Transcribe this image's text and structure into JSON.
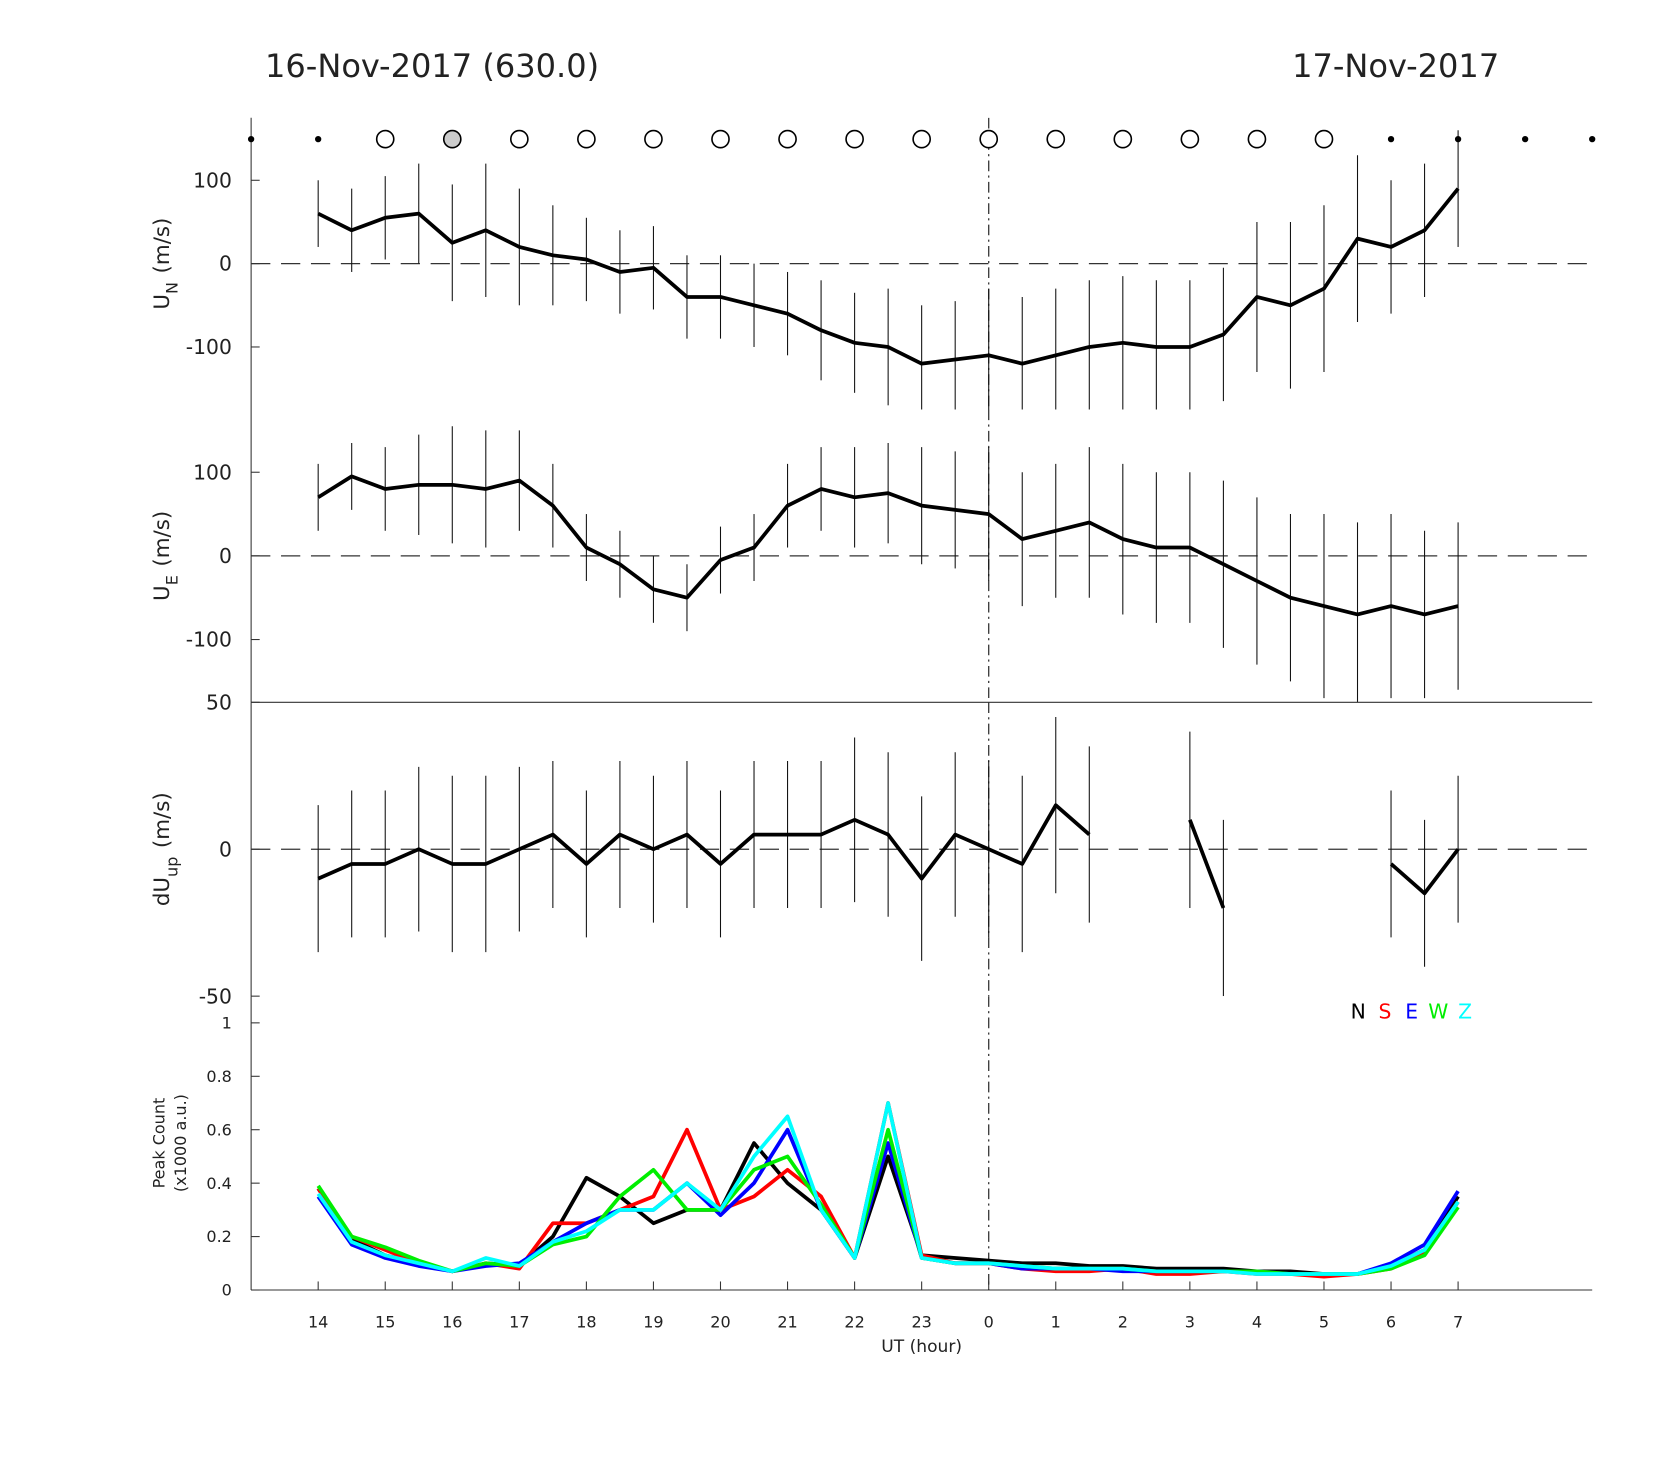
{
  "chart_data": [
    {
      "type": "line",
      "title": "16-Nov-2017 (630.0)",
      "subtitle": "17-Nov-2017",
      "ylabel": "U",
      "ylabel_sub": "N",
      "ylabel_unit": "(m/s)",
      "xlim": [
        13,
        33
      ],
      "ylim": [
        -175,
        175
      ],
      "yticks": [
        -100,
        0,
        100
      ],
      "x": [
        14,
        14.5,
        15,
        15.5,
        16,
        16.5,
        17,
        17.5,
        18,
        18.5,
        19,
        19.5,
        20,
        20.5,
        21,
        21.5,
        22,
        22.5,
        23,
        23.5,
        24,
        24.5,
        25,
        25.5,
        26,
        26.5,
        27,
        27.5,
        28,
        28.5,
        29,
        29.5,
        30,
        30.5,
        31
      ],
      "series": [
        {
          "color": "#000000",
          "values": [
            60,
            40,
            55,
            60,
            25,
            40,
            20,
            10,
            5,
            -10,
            -5,
            -40,
            -40,
            -50,
            -60,
            -80,
            -95,
            -100,
            -120,
            -115,
            -110,
            -120,
            -110,
            -100,
            -95,
            -100,
            -100,
            -85,
            -40,
            -50,
            -30,
            30,
            20,
            40,
            90
          ],
          "errors": [
            40,
            50,
            50,
            60,
            70,
            80,
            70,
            60,
            50,
            50,
            50,
            50,
            50,
            50,
            50,
            60,
            60,
            70,
            70,
            70,
            80,
            80,
            80,
            80,
            80,
            80,
            80,
            80,
            90,
            100,
            100,
            100,
            80,
            80,
            70
          ]
        }
      ]
    },
    {
      "type": "line",
      "ylabel": "U",
      "ylabel_sub": "E",
      "ylabel_unit": "(m/s)",
      "xlim": [
        13,
        33
      ],
      "ylim": [
        -175,
        175
      ],
      "yticks": [
        -100,
        0,
        100
      ],
      "x": [
        14,
        14.5,
        15,
        15.5,
        16,
        16.5,
        17,
        17.5,
        18,
        18.5,
        19,
        19.5,
        20,
        20.5,
        21,
        21.5,
        22,
        22.5,
        23,
        23.5,
        24,
        24.5,
        25,
        25.5,
        26,
        26.5,
        27,
        27.5,
        28,
        28.5,
        29,
        29.5,
        30,
        30.5,
        31
      ],
      "series": [
        {
          "color": "#000000",
          "values": [
            70,
            95,
            80,
            85,
            85,
            80,
            90,
            60,
            10,
            -10,
            -40,
            -50,
            -5,
            10,
            60,
            80,
            70,
            75,
            60,
            55,
            50,
            20,
            30,
            40,
            20,
            10,
            10,
            -10,
            -30,
            -50,
            -60,
            -70,
            -60,
            -70,
            -60
          ],
          "errors": [
            40,
            40,
            50,
            60,
            70,
            70,
            60,
            50,
            40,
            40,
            40,
            40,
            40,
            40,
            50,
            50,
            60,
            60,
            70,
            70,
            80,
            80,
            80,
            90,
            90,
            90,
            90,
            100,
            100,
            100,
            110,
            110,
            110,
            100,
            100
          ]
        }
      ]
    },
    {
      "type": "line",
      "ylabel": "dU",
      "ylabel_sub": "up",
      "ylabel_unit": "(m/s)",
      "xlim": [
        13,
        33
      ],
      "ylim": [
        -50,
        50
      ],
      "yticks": [
        -50,
        0,
        50
      ],
      "x": [
        14,
        14.5,
        15,
        15.5,
        16,
        16.5,
        17,
        17.5,
        18,
        18.5,
        19,
        19.5,
        20,
        20.5,
        21,
        21.5,
        22,
        22.5,
        23,
        23.5,
        24,
        24.5,
        25,
        25.5,
        26,
        26.5,
        27,
        27.5,
        28,
        28.5,
        29,
        29.5,
        30,
        30.5,
        31
      ],
      "series": [
        {
          "color": "#000000",
          "values": [
            -10,
            -5,
            -5,
            0,
            -5,
            -5,
            0,
            5,
            -5,
            5,
            0,
            5,
            -5,
            5,
            5,
            5,
            10,
            5,
            -10,
            5,
            0,
            -5,
            15,
            5,
            null,
            null,
            10,
            -20,
            null,
            null,
            null,
            null,
            -5,
            -15,
            0
          ],
          "errors": [
            25,
            25,
            25,
            28,
            30,
            30,
            28,
            25,
            25,
            25,
            25,
            25,
            25,
            25,
            25,
            25,
            28,
            28,
            28,
            28,
            30,
            30,
            30,
            30,
            null,
            null,
            30,
            30,
            null,
            null,
            null,
            null,
            25,
            25,
            25
          ]
        }
      ]
    },
    {
      "type": "line",
      "ylabel": "Peak Count",
      "ylabel_unit": "(x1000 a.u.)",
      "xlabel": "UT (hour)",
      "xlim": [
        13,
        33
      ],
      "ylim": [
        0,
        1.1
      ],
      "yticks": [
        0,
        0.2,
        0.4,
        0.6,
        0.8,
        1
      ],
      "xticks": [
        14,
        15,
        16,
        17,
        18,
        19,
        20,
        21,
        22,
        23,
        {
          "value": 24,
          "label": "0"
        },
        {
          "value": 25,
          "label": "1"
        },
        {
          "value": 26,
          "label": "2"
        },
        {
          "value": 27,
          "label": "3"
        },
        {
          "value": 28,
          "label": "4"
        },
        {
          "value": 29,
          "label": "5"
        },
        {
          "value": 30,
          "label": "6"
        },
        {
          "value": 31,
          "label": "7"
        }
      ],
      "x": [
        14,
        14.5,
        15,
        15.5,
        16,
        16.5,
        17,
        17.5,
        18,
        18.5,
        19,
        19.5,
        20,
        20.5,
        21,
        21.5,
        22,
        22.5,
        23,
        23.5,
        24,
        24.5,
        25,
        25.5,
        26,
        26.5,
        27,
        27.5,
        28,
        28.5,
        29,
        29.5,
        30,
        30.5,
        31
      ],
      "series": [
        {
          "name": "N",
          "color": "#000000",
          "values": [
            0.38,
            0.19,
            0.13,
            0.1,
            0.07,
            0.1,
            0.09,
            0.2,
            0.42,
            0.35,
            0.25,
            0.3,
            0.3,
            0.55,
            0.4,
            0.3,
            0.12,
            0.5,
            0.13,
            0.12,
            0.11,
            0.1,
            0.1,
            0.09,
            0.09,
            0.08,
            0.08,
            0.08,
            0.07,
            0.07,
            0.06,
            0.06,
            0.09,
            0.15,
            0.35
          ]
        },
        {
          "name": "S",
          "color": "#ff0000",
          "values": [
            0.38,
            0.2,
            0.15,
            0.1,
            0.07,
            0.1,
            0.08,
            0.25,
            0.25,
            0.3,
            0.35,
            0.6,
            0.3,
            0.35,
            0.45,
            0.35,
            0.12,
            0.7,
            0.13,
            0.1,
            0.1,
            0.08,
            0.07,
            0.07,
            0.08,
            0.06,
            0.06,
            0.07,
            0.06,
            0.06,
            0.05,
            0.06,
            0.08,
            0.14,
            0.33
          ]
        },
        {
          "name": "E",
          "color": "#0000ff",
          "values": [
            0.35,
            0.17,
            0.12,
            0.09,
            0.07,
            0.09,
            0.1,
            0.18,
            0.25,
            0.3,
            0.3,
            0.4,
            0.28,
            0.4,
            0.6,
            0.3,
            0.12,
            0.55,
            0.12,
            0.1,
            0.1,
            0.08,
            0.08,
            0.08,
            0.07,
            0.07,
            0.07,
            0.07,
            0.07,
            0.06,
            0.06,
            0.06,
            0.1,
            0.17,
            0.37
          ]
        },
        {
          "name": "W",
          "color": "#00ee00",
          "values": [
            0.39,
            0.2,
            0.16,
            0.11,
            0.07,
            0.1,
            0.09,
            0.17,
            0.2,
            0.35,
            0.45,
            0.3,
            0.3,
            0.45,
            0.5,
            0.32,
            0.12,
            0.6,
            0.12,
            0.1,
            0.1,
            0.09,
            0.08,
            0.08,
            0.08,
            0.07,
            0.07,
            0.07,
            0.07,
            0.06,
            0.06,
            0.06,
            0.08,
            0.13,
            0.31
          ]
        },
        {
          "name": "Z",
          "color": "#00ffff",
          "values": [
            0.36,
            0.18,
            0.13,
            0.1,
            0.07,
            0.12,
            0.09,
            0.18,
            0.22,
            0.3,
            0.3,
            0.4,
            0.3,
            0.5,
            0.65,
            0.3,
            0.12,
            0.7,
            0.12,
            0.1,
            0.1,
            0.09,
            0.08,
            0.08,
            0.08,
            0.07,
            0.07,
            0.07,
            0.06,
            0.06,
            0.06,
            0.06,
            0.09,
            0.15,
            0.33
          ]
        }
      ]
    }
  ]
}
